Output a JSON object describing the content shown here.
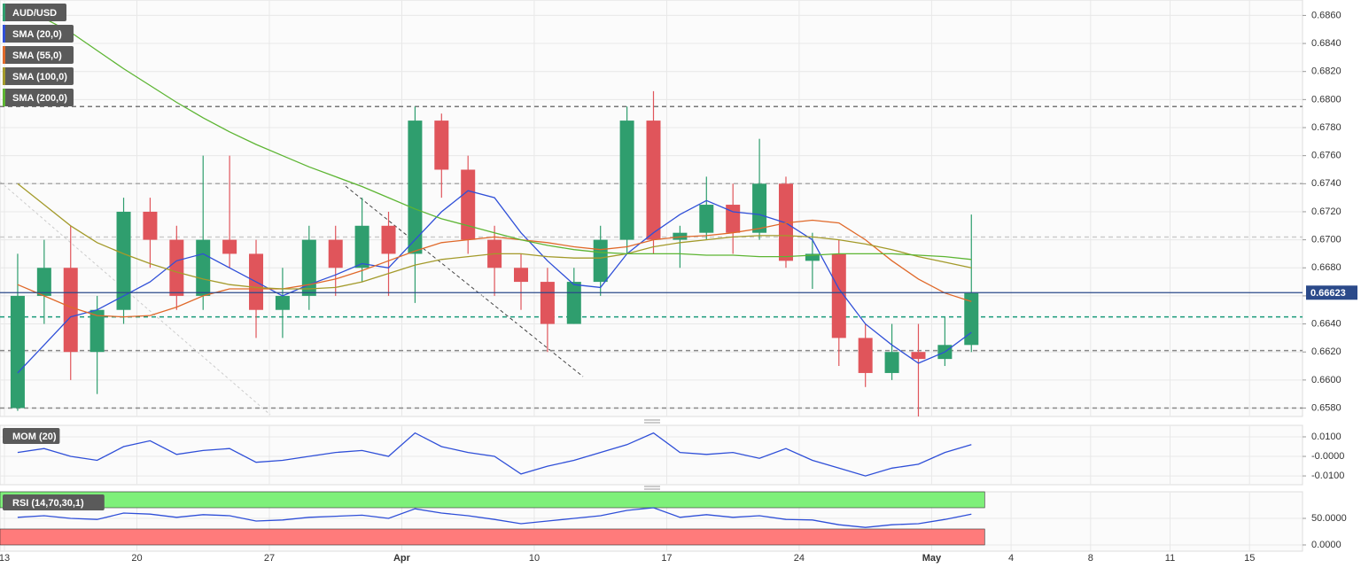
{
  "chart_data": [
    {
      "type": "candlestick",
      "title": "AUD/USD",
      "up_color": "#2f9e6e",
      "down_color": "#e0555b",
      "x": [
        0.5,
        1.5,
        2.5,
        3.5,
        4.5,
        5.5,
        6.5,
        7.5,
        8.5,
        9.5,
        10.5,
        11.5,
        12.5,
        13.5,
        14.5,
        15.5,
        16.5,
        17.5,
        18.5,
        19.5,
        20.5,
        21.5,
        22.5,
        23.5,
        24.5,
        25.5,
        26.5,
        27.5,
        28.5,
        29.5,
        30.5,
        31.5,
        32.5,
        33.5,
        34.5,
        35.5,
        36.5
      ],
      "open": [
        0.658,
        0.666,
        0.668,
        0.662,
        0.665,
        0.672,
        0.67,
        0.666,
        0.67,
        0.669,
        0.665,
        0.666,
        0.67,
        0.668,
        0.671,
        0.669,
        0.6785,
        0.675,
        0.67,
        0.668,
        0.667,
        0.664,
        0.667,
        0.67,
        0.6785,
        0.67,
        0.6705,
        0.6725,
        0.6705,
        0.674,
        0.6685,
        0.669,
        0.663,
        0.6605,
        0.662,
        0.6615,
        0.6625
      ],
      "high": [
        0.669,
        0.67,
        0.671,
        0.666,
        0.673,
        0.673,
        0.671,
        0.676,
        0.676,
        0.67,
        0.668,
        0.671,
        0.671,
        0.673,
        0.672,
        0.6795,
        0.679,
        0.676,
        0.671,
        0.669,
        0.668,
        0.668,
        0.671,
        0.6795,
        0.6806,
        0.671,
        0.6745,
        0.674,
        0.6772,
        0.6745,
        0.6705,
        0.67,
        0.664,
        0.664,
        0.664,
        0.6645,
        0.6718
      ],
      "low": [
        0.6578,
        0.664,
        0.66,
        0.659,
        0.664,
        0.668,
        0.665,
        0.665,
        0.668,
        0.663,
        0.663,
        0.665,
        0.666,
        0.667,
        0.666,
        0.6655,
        0.673,
        0.669,
        0.666,
        0.665,
        0.662,
        0.664,
        0.666,
        0.669,
        0.669,
        0.668,
        0.67,
        0.669,
        0.67,
        0.668,
        0.6665,
        0.661,
        0.6595,
        0.66,
        0.6574,
        0.661,
        0.662
      ],
      "close": [
        0.666,
        0.668,
        0.662,
        0.665,
        0.672,
        0.67,
        0.666,
        0.67,
        0.669,
        0.665,
        0.666,
        0.67,
        0.668,
        0.671,
        0.669,
        0.6785,
        0.675,
        0.67,
        0.668,
        0.667,
        0.664,
        0.667,
        0.67,
        0.6785,
        0.67,
        0.6705,
        0.6725,
        0.6705,
        0.674,
        0.6685,
        0.669,
        0.663,
        0.6605,
        0.662,
        0.6615,
        0.6625,
        0.6662
      ],
      "series": [
        {
          "name": "SMA (20,0)",
          "color": "#2f4fd8",
          "values": [
            0.6605,
            0.6625,
            0.6645,
            0.665,
            0.666,
            0.667,
            0.6685,
            0.669,
            0.668,
            0.667,
            0.666,
            0.6668,
            0.6675,
            0.6683,
            0.668,
            0.67,
            0.672,
            0.6735,
            0.673,
            0.6705,
            0.6685,
            0.6668,
            0.6666,
            0.669,
            0.6705,
            0.6718,
            0.6728,
            0.672,
            0.6718,
            0.6712,
            0.67,
            0.6665,
            0.664,
            0.6625,
            0.6612,
            0.662,
            0.6634
          ]
        },
        {
          "name": "SMA (55,0)",
          "color": "#e0692a",
          "values": [
            0.6668,
            0.666,
            0.6652,
            0.6646,
            0.6645,
            0.6646,
            0.6652,
            0.666,
            0.6665,
            0.6665,
            0.6665,
            0.6668,
            0.6672,
            0.6678,
            0.6685,
            0.6692,
            0.6698,
            0.67,
            0.6702,
            0.67,
            0.6698,
            0.6695,
            0.6693,
            0.6695,
            0.67,
            0.6702,
            0.6703,
            0.6705,
            0.6708,
            0.6712,
            0.6714,
            0.6712,
            0.67,
            0.6685,
            0.6672,
            0.6662,
            0.6656
          ]
        },
        {
          "name": "SMA (100,0)",
          "color": "#a39a2a",
          "values": [
            0.674,
            0.6725,
            0.671,
            0.6698,
            0.669,
            0.6683,
            0.6677,
            0.6672,
            0.6668,
            0.6666,
            0.6665,
            0.6665,
            0.6666,
            0.667,
            0.6676,
            0.6682,
            0.6686,
            0.6688,
            0.669,
            0.669,
            0.6688,
            0.6687,
            0.6687,
            0.669,
            0.6695,
            0.6698,
            0.67,
            0.6702,
            0.6703,
            0.6703,
            0.6702,
            0.67,
            0.6697,
            0.6693,
            0.6688,
            0.6684,
            0.668
          ]
        },
        {
          "name": "SMA (200,0)",
          "color": "#5db533",
          "values": [
            0.6868,
            0.6858,
            0.6848,
            0.6835,
            0.6822,
            0.681,
            0.6798,
            0.6787,
            0.6777,
            0.6768,
            0.676,
            0.6752,
            0.6745,
            0.6738,
            0.673,
            0.6722,
            0.6715,
            0.671,
            0.6705,
            0.67,
            0.6696,
            0.6693,
            0.6691,
            0.669,
            0.669,
            0.669,
            0.6689,
            0.6689,
            0.6688,
            0.6688,
            0.6689,
            0.669,
            0.669,
            0.669,
            0.6689,
            0.6688,
            0.6686
          ]
        }
      ],
      "levels": [
        {
          "value": 0.6795,
          "color": "#777777"
        },
        {
          "value": 0.674,
          "color": "#aaaaaa"
        },
        {
          "value": 0.6702,
          "color": "#cccccc"
        },
        {
          "value": 0.6645,
          "color": "#1a9a7a"
        },
        {
          "value": 0.6621,
          "color": "#888888"
        },
        {
          "value": 0.658,
          "color": "#888888"
        }
      ],
      "last_price": 0.66623,
      "last_price_color": "#2b4a8a",
      "xlim": [
        -0.167,
        49.0
      ],
      "ylim": [
        0.6574,
        0.6871
      ],
      "xticks": [
        {
          "value": 0,
          "label": "13"
        },
        {
          "value": 5,
          "label": "20"
        },
        {
          "value": 10,
          "label": "27"
        },
        {
          "value": 15,
          "label": "Apr"
        },
        {
          "value": 20,
          "label": "10"
        },
        {
          "value": 25,
          "label": "17"
        },
        {
          "value": 30,
          "label": "24"
        },
        {
          "value": 35,
          "label": "May"
        },
        {
          "value": 38,
          "label": "4"
        },
        {
          "value": 41,
          "label": "8"
        },
        {
          "value": 44,
          "label": "11"
        },
        {
          "value": 47,
          "label": "15"
        }
      ],
      "yticks": [
        {
          "value": 0.658,
          "label": "0.6580"
        },
        {
          "value": 0.66,
          "label": "0.6600"
        },
        {
          "value": 0.662,
          "label": "0.6620"
        },
        {
          "value": 0.664,
          "label": "0.6640"
        },
        {
          "value": 0.666,
          "label": "0.6660"
        },
        {
          "value": 0.668,
          "label": "0.6680"
        },
        {
          "value": 0.67,
          "label": "0.6700"
        },
        {
          "value": 0.672,
          "label": "0.6720"
        },
        {
          "value": 0.674,
          "label": "0.6740"
        },
        {
          "value": 0.676,
          "label": "0.6760"
        },
        {
          "value": 0.678,
          "label": "0.6780"
        },
        {
          "value": 0.68,
          "label": "0.6800"
        },
        {
          "value": 0.682,
          "label": "0.6820"
        },
        {
          "value": 0.684,
          "label": "0.6840"
        },
        {
          "value": 0.686,
          "label": "0.6860"
        }
      ],
      "grid": true
    },
    {
      "type": "line",
      "title": "MOM (20)",
      "x": [
        0.5,
        1.5,
        2.5,
        3.5,
        4.5,
        5.5,
        6.5,
        7.5,
        8.5,
        9.5,
        10.5,
        11.5,
        12.5,
        13.5,
        14.5,
        15.5,
        16.5,
        17.5,
        18.5,
        19.5,
        20.5,
        21.5,
        22.5,
        23.5,
        24.5,
        25.5,
        26.5,
        27.5,
        28.5,
        29.5,
        30.5,
        31.5,
        32.5,
        33.5,
        34.5,
        35.5,
        36.5
      ],
      "series": [
        {
          "name": "MOM (20)",
          "color": "#2f4fd8",
          "values": [
            0.002,
            0.004,
            0.0,
            -0.002,
            0.005,
            0.008,
            0.001,
            0.003,
            0.004,
            -0.003,
            -0.002,
            0.0,
            0.002,
            0.003,
            0.0,
            0.012,
            0.005,
            0.002,
            0.0,
            -0.009,
            -0.005,
            -0.002,
            0.002,
            0.006,
            0.012,
            0.002,
            0.001,
            0.002,
            -0.001,
            0.004,
            -0.002,
            -0.006,
            -0.01,
            -0.006,
            -0.004,
            0.002,
            0.006
          ]
        }
      ],
      "xlim": [
        -0.167,
        49.0
      ],
      "ylim": [
        -0.0145,
        0.0159
      ],
      "yticks": [
        {
          "value": -0.01,
          "label": "-0.0100"
        },
        {
          "value": 0,
          "label": "-0.0000"
        },
        {
          "value": 0.01,
          "label": "0.0100"
        }
      ],
      "grid": true
    },
    {
      "type": "line",
      "title": "RSI (14,70,30,1)",
      "x": [
        0.5,
        1.5,
        2.5,
        3.5,
        4.5,
        5.5,
        6.5,
        7.5,
        8.5,
        9.5,
        10.5,
        11.5,
        12.5,
        13.5,
        14.5,
        15.5,
        16.5,
        17.5,
        18.5,
        19.5,
        20.5,
        21.5,
        22.5,
        23.5,
        24.5,
        25.5,
        26.5,
        27.5,
        28.5,
        29.5,
        30.5,
        31.5,
        32.5,
        33.5,
        34.5,
        35.5,
        36.5
      ],
      "series": [
        {
          "name": "RSI (14,70,30,1)",
          "color": "#2f4fd8",
          "values": [
            52,
            55,
            50,
            48,
            60,
            58,
            52,
            57,
            55,
            45,
            47,
            52,
            54,
            56,
            50,
            68,
            60,
            55,
            48,
            40,
            45,
            50,
            55,
            65,
            70,
            52,
            57,
            52,
            55,
            48,
            47,
            38,
            33,
            38,
            40,
            48,
            58
          ]
        }
      ],
      "zones": [
        {
          "from": 70,
          "to": 100,
          "color": "#7ef07a"
        },
        {
          "from": 0,
          "to": 30,
          "color": "#ff7b7b"
        }
      ],
      "xlim": [
        -0.167,
        49.0
      ],
      "ylim": [
        -11.7,
        100
      ],
      "yticks": [
        {
          "value": 0,
          "label": "0.0000"
        },
        {
          "value": 50,
          "label": "50.0000"
        }
      ],
      "grid": true
    }
  ]
}
